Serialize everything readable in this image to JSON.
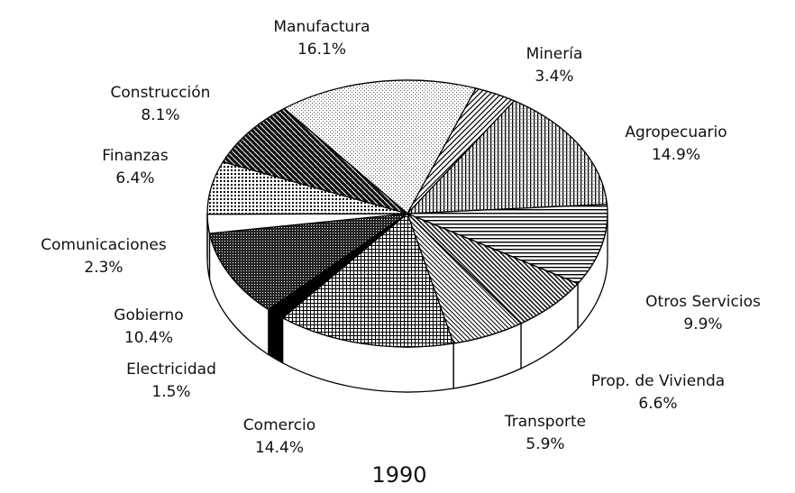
{
  "chart_data": {
    "type": "pie",
    "title": "1990",
    "categories": [
      "Manufactura",
      "Minería",
      "Agropecuario",
      "Otros Servicios",
      "Prop. de Vivienda",
      "Transporte",
      "Comercio",
      "Electricidad",
      "Gobierno",
      "Comunicaciones",
      "Finanzas",
      "Construcción"
    ],
    "values": [
      16.1,
      3.4,
      14.9,
      9.9,
      6.6,
      5.9,
      14.4,
      1.5,
      10.4,
      2.3,
      6.4,
      8.1
    ],
    "value_labels": [
      "16.1%",
      "3.4%",
      "14.9%",
      "9.9%",
      "6.6%",
      "5.9%",
      "14.4%",
      "1.5%",
      "10.4%",
      "2.3%",
      "6.4%",
      "8.1%"
    ]
  }
}
